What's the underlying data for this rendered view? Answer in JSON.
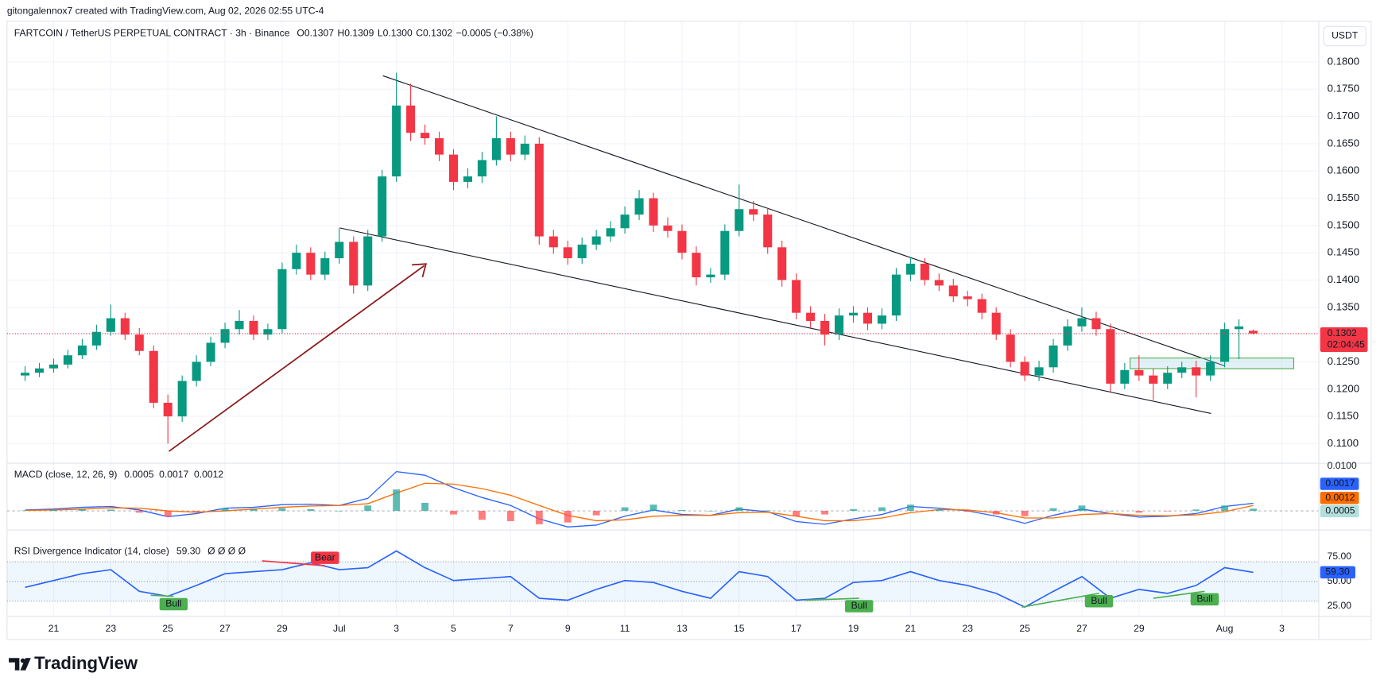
{
  "header": {
    "credit": "gitongalennox7 created with TradingView.com, Aug 02, 2026 02:55 UTC-4"
  },
  "chart_data": [
    {
      "type": "candlestick",
      "title": "FARTCOIN / TetherUS PERPETUAL CONTRACT · 3h · Binance",
      "ohlc_legend": [
        {
          "label": "O",
          "value": "0.1307"
        },
        {
          "label": "H",
          "value": "0.1309"
        },
        {
          "label": "L",
          "value": "0.1300"
        },
        {
          "label": "C",
          "value": "0.1302"
        }
      ],
      "change": "−0.0005 (−0.38%)",
      "currency": "USDT",
      "up_color": "#089981",
      "down_color": "#f23645",
      "x": [
        20,
        20.5,
        21,
        21.5,
        22,
        22.5,
        23,
        23.5,
        24,
        24.5,
        25,
        25.5,
        26,
        26.5,
        27,
        27.5,
        28,
        28.5,
        29,
        29.5,
        30,
        30.5,
        31,
        31.5,
        32,
        32.5,
        33,
        33.5,
        34,
        34.5,
        35,
        35.5,
        36,
        36.5,
        37,
        37.5,
        38,
        38.5,
        39,
        39.5,
        40,
        40.5,
        41,
        41.5,
        42,
        42.5,
        43,
        43.5,
        44,
        44.5,
        45,
        45.5,
        46,
        46.5,
        47,
        47.5,
        48,
        48.5,
        49,
        49.5,
        50,
        50.5,
        51,
        51.5,
        52,
        52.5,
        53,
        53.5,
        54,
        54.5,
        55,
        55.5,
        56,
        56.5,
        57,
        57.5,
        58,
        58.5,
        59,
        59.5,
        60,
        60.5,
        61,
        61.5,
        62,
        62.5,
        63
      ],
      "open": [
        0.1225,
        0.123,
        0.1238,
        0.1245,
        0.1262,
        0.128,
        0.1305,
        0.133,
        0.13,
        0.127,
        0.1175,
        0.115,
        0.1215,
        0.125,
        0.1285,
        0.131,
        0.1325,
        0.13,
        0.131,
        0.142,
        0.145,
        0.141,
        0.144,
        0.147,
        0.139,
        0.148,
        0.159,
        0.172,
        0.167,
        0.166,
        0.163,
        0.158,
        0.159,
        0.162,
        0.166,
        0.163,
        0.165,
        0.148,
        0.146,
        0.144,
        0.1465,
        0.148,
        0.1495,
        0.152,
        0.155,
        0.15,
        0.149,
        0.145,
        0.1405,
        0.141,
        0.149,
        0.153,
        0.152,
        0.146,
        0.14,
        0.134,
        0.1325,
        0.13,
        0.1335,
        0.134,
        0.132,
        0.1335,
        0.141,
        0.143,
        0.14,
        0.139,
        0.137,
        0.1365,
        0.134,
        0.13,
        0.125,
        0.1225,
        0.124,
        0.128,
        0.1315,
        0.133,
        0.131,
        0.121,
        0.1235,
        0.1225,
        0.121,
        0.123,
        0.124,
        0.1225,
        0.125,
        0.131,
        0.1307
      ],
      "high": [
        0.1242,
        0.1248,
        0.1256,
        0.1272,
        0.1292,
        0.1318,
        0.1355,
        0.134,
        0.1312,
        0.128,
        0.119,
        0.1225,
        0.1262,
        0.1296,
        0.1322,
        0.1345,
        0.1335,
        0.132,
        0.1432,
        0.1465,
        0.146,
        0.1452,
        0.1495,
        0.148,
        0.1492,
        0.1602,
        0.178,
        0.176,
        0.1685,
        0.1672,
        0.164,
        0.1605,
        0.1635,
        0.17,
        0.1672,
        0.1665,
        0.1662,
        0.1492,
        0.1472,
        0.1478,
        0.1492,
        0.1508,
        0.1535,
        0.1565,
        0.156,
        0.1515,
        0.1502,
        0.1462,
        0.1422,
        0.1502,
        0.1575,
        0.1545,
        0.1532,
        0.1472,
        0.1412,
        0.1352,
        0.1338,
        0.1348,
        0.1352,
        0.135,
        0.1348,
        0.1422,
        0.1442,
        0.144,
        0.1412,
        0.1402,
        0.138,
        0.1375,
        0.135,
        0.131,
        0.126,
        0.1252,
        0.1292,
        0.1328,
        0.135,
        0.1342,
        0.132,
        0.1248,
        0.1262,
        0.1238,
        0.1242,
        0.125,
        0.1252,
        0.1262,
        0.1322,
        0.1328,
        0.1309
      ],
      "low": [
        0.1215,
        0.1222,
        0.123,
        0.1238,
        0.1255,
        0.1272,
        0.1298,
        0.129,
        0.1262,
        0.1165,
        0.11,
        0.114,
        0.1205,
        0.1242,
        0.1275,
        0.13,
        0.129,
        0.129,
        0.1302,
        0.141,
        0.14,
        0.14,
        0.143,
        0.1375,
        0.138,
        0.147,
        0.158,
        0.1655,
        0.1648,
        0.1618,
        0.1565,
        0.1568,
        0.1578,
        0.161,
        0.1618,
        0.162,
        0.1465,
        0.1448,
        0.1428,
        0.143,
        0.1455,
        0.147,
        0.1485,
        0.151,
        0.1488,
        0.1478,
        0.1438,
        0.139,
        0.1395,
        0.14,
        0.148,
        0.1508,
        0.1448,
        0.1388,
        0.1328,
        0.1312,
        0.128,
        0.129,
        0.1322,
        0.1308,
        0.131,
        0.1325,
        0.1398,
        0.139,
        0.138,
        0.136,
        0.1352,
        0.1328,
        0.129,
        0.124,
        0.1215,
        0.1215,
        0.123,
        0.127,
        0.1305,
        0.1298,
        0.1195,
        0.12,
        0.1215,
        0.118,
        0.12,
        0.122,
        0.1185,
        0.1215,
        0.124,
        0.1255,
        0.13
      ],
      "close": [
        0.123,
        0.1238,
        0.1245,
        0.1262,
        0.128,
        0.1305,
        0.133,
        0.13,
        0.127,
        0.1175,
        0.115,
        0.1215,
        0.125,
        0.1285,
        0.131,
        0.1325,
        0.13,
        0.131,
        0.142,
        0.145,
        0.141,
        0.144,
        0.147,
        0.139,
        0.148,
        0.159,
        0.172,
        0.167,
        0.166,
        0.163,
        0.158,
        0.159,
        0.162,
        0.166,
        0.163,
        0.165,
        0.148,
        0.146,
        0.144,
        0.1465,
        0.148,
        0.1495,
        0.152,
        0.155,
        0.15,
        0.149,
        0.145,
        0.1405,
        0.141,
        0.149,
        0.153,
        0.152,
        0.146,
        0.14,
        0.134,
        0.1325,
        0.13,
        0.1335,
        0.134,
        0.132,
        0.1335,
        0.141,
        0.143,
        0.14,
        0.139,
        0.137,
        0.1365,
        0.134,
        0.13,
        0.125,
        0.1225,
        0.124,
        0.128,
        0.1315,
        0.133,
        0.131,
        0.121,
        0.1235,
        0.1225,
        0.121,
        0.123,
        0.124,
        0.1225,
        0.125,
        0.131,
        0.1315,
        0.1302
      ],
      "xlim": [
        19.43,
        65.25
      ],
      "xticks": [
        21,
        23,
        25,
        27,
        29,
        {
          "value": 31,
          "label": "Jul"
        },
        {
          "value": 33,
          "label": "3"
        },
        {
          "value": 35,
          "label": "5"
        },
        {
          "value": 37,
          "label": "7"
        },
        {
          "value": 39,
          "label": "9"
        },
        {
          "value": 41,
          "label": "11"
        },
        {
          "value": 43,
          "label": "13"
        },
        {
          "value": 45,
          "label": "15"
        },
        {
          "value": 47,
          "label": "17"
        },
        {
          "value": 49,
          "label": "19"
        },
        {
          "value": 51,
          "label": "21"
        },
        {
          "value": 53,
          "label": "23"
        },
        {
          "value": 55,
          "label": "25"
        },
        {
          "value": 57,
          "label": "27"
        },
        {
          "value": 59,
          "label": "29"
        },
        {
          "value": 62,
          "label": "Aug"
        },
        {
          "value": 64,
          "label": "3"
        }
      ],
      "ylim": [
        0.1065,
        0.1873
      ],
      "yticks": [
        {
          "value": 0.11,
          "label": "0.1100"
        },
        {
          "value": 0.115,
          "label": "0.1150"
        },
        {
          "value": 0.12,
          "label": "0.1200"
        },
        {
          "value": 0.125,
          "label": "0.1250"
        },
        {
          "value": 0.13,
          "label": "0.1300"
        },
        {
          "value": 0.135,
          "label": "0.1350"
        },
        {
          "value": 0.14,
          "label": "0.1400"
        },
        {
          "value": 0.145,
          "label": "0.1450"
        },
        {
          "value": 0.15,
          "label": "0.1500"
        },
        {
          "value": 0.155,
          "label": "0.1550"
        },
        {
          "value": 0.16,
          "label": "0.1600"
        },
        {
          "value": 0.165,
          "label": "0.1650"
        },
        {
          "value": 0.17,
          "label": "0.1700"
        },
        {
          "value": 0.175,
          "label": "0.1750"
        },
        {
          "value": 0.18,
          "label": "0.1800"
        }
      ],
      "grid": true,
      "last_price": 0.1302,
      "countdown": "02:04:45"
    },
    {
      "type": "macd",
      "title": "MACD (close, 12, 26, 9)",
      "x": [
        20,
        21,
        22,
        23,
        24,
        25,
        26,
        27,
        28,
        29,
        30,
        31,
        32,
        33,
        34,
        35,
        36,
        37,
        38,
        39,
        40,
        41,
        42,
        43,
        44,
        45,
        46,
        47,
        48,
        49,
        50,
        51,
        52,
        53,
        54,
        55,
        56,
        57,
        58,
        59,
        60,
        61,
        62,
        63
      ],
      "series": [
        {
          "style": "line",
          "color": "#2962ff",
          "values": [
            0.0002,
            0.0004,
            0.0008,
            0.001,
            0.0002,
            -0.0013,
            -0.0006,
            0.0006,
            0.0008,
            0.0014,
            0.0015,
            0.0012,
            0.0028,
            0.0088,
            0.008,
            0.0052,
            0.003,
            0.0012,
            -0.0018,
            -0.0036,
            -0.0032,
            -0.0012,
            0.0002,
            -0.0008,
            -0.001,
            0.0004,
            -0.0002,
            -0.0024,
            -0.003,
            -0.0018,
            -0.0008,
            0.001,
            0.0006,
            0.0,
            -0.0012,
            -0.0028,
            -0.001,
            0.0004,
            -0.0006,
            -0.0014,
            -0.0012,
            -0.0006,
            0.001,
            0.0017
          ]
        },
        {
          "style": "line",
          "color": "#ff6d00",
          "values": [
            0.0001,
            0.0002,
            0.0004,
            0.0007,
            0.0006,
            0.0,
            -0.0003,
            0.0,
            0.0004,
            0.0008,
            0.0011,
            0.0012,
            0.0016,
            0.004,
            0.0062,
            0.006,
            0.005,
            0.0035,
            0.0012,
            -0.001,
            -0.0022,
            -0.002,
            -0.0012,
            -0.001,
            -0.001,
            -0.0004,
            -0.0003,
            -0.0012,
            -0.0022,
            -0.0022,
            -0.0016,
            -0.0004,
            0.0003,
            0.0002,
            -0.0004,
            -0.0016,
            -0.0016,
            -0.0008,
            -0.0006,
            -0.001,
            -0.0011,
            -0.0009,
            -0.0002,
            0.0012
          ]
        },
        {
          "style": "histogram",
          "color": "#26a69a",
          "negative_color": "#ff5252",
          "values": [
            0.0001,
            0.0002,
            0.0004,
            0.0003,
            -0.0004,
            -0.0013,
            -0.0003,
            0.0006,
            0.0004,
            0.0006,
            0.0004,
            0.0,
            0.0012,
            0.0048,
            0.0018,
            -0.0008,
            -0.002,
            -0.0023,
            -0.003,
            -0.0026,
            -0.001,
            0.0008,
            0.0014,
            0.0002,
            0.0,
            0.0008,
            0.0001,
            -0.0012,
            -0.0008,
            0.0004,
            0.0008,
            0.0014,
            0.0003,
            -0.0002,
            -0.0008,
            -0.0012,
            0.0006,
            0.0012,
            0.0,
            -0.0004,
            -0.0001,
            0.0003,
            0.0012,
            0.0005
          ]
        }
      ],
      "ylim": [
        -0.004,
        0.0106
      ],
      "yticks": [
        {
          "value": 0.01,
          "label": "0.0100"
        }
      ]
    },
    {
      "type": "rsi",
      "title": "RSI Divergence Indicator (14, close)",
      "symbols": "Ø Ø Ø Ø",
      "color": "#2962ff",
      "x": [
        20,
        21,
        22,
        23,
        24,
        25,
        26,
        27,
        28,
        29,
        30,
        31,
        32,
        33,
        34,
        35,
        36,
        37,
        38,
        39,
        40,
        41,
        42,
        43,
        44,
        45,
        46,
        47,
        48,
        49,
        50,
        51,
        52,
        53,
        54,
        55,
        56,
        57,
        58,
        59,
        60,
        61,
        62,
        63
      ],
      "values": [
        44,
        51,
        58,
        62,
        40,
        35,
        46,
        58,
        60,
        62,
        69,
        62,
        64,
        81,
        64,
        51,
        53,
        55,
        33,
        31,
        42,
        51,
        49,
        40,
        33,
        60,
        55,
        31,
        33,
        49,
        51,
        60,
        51,
        46,
        38,
        24,
        40,
        55,
        33,
        42,
        38,
        46,
        64,
        59.3
      ],
      "value_labels": {
        "43": "59.30"
      },
      "band": [
        30,
        70
      ],
      "ylim": [
        15.2,
        101.8
      ],
      "yticks": [
        {
          "value": 25,
          "label": "25.00"
        },
        {
          "value": 50,
          "label": "50.00"
        },
        {
          "value": 75,
          "label": "75.00"
        }
      ],
      "bull_color": "#4caf50",
      "bear_color": "#f23645",
      "divergences": [
        {
          "label": "Bear",
          "from": [
            28.3,
            71
          ],
          "to": [
            30.5,
            66
          ]
        },
        {
          "label": "Bull",
          "from": [
            24.4,
            36
          ],
          "to": [
            25.2,
            35
          ]
        },
        {
          "label": "Bull",
          "from": [
            47.3,
            31
          ],
          "to": [
            49.2,
            33
          ]
        },
        {
          "label": "Bull",
          "from": [
            54.9,
            24
          ],
          "to": [
            57.6,
            38
          ]
        },
        {
          "label": "Bull",
          "from": [
            59.5,
            33
          ],
          "to": [
            61.3,
            40
          ]
        }
      ]
    }
  ],
  "footer": {
    "brand": "TradingView"
  }
}
